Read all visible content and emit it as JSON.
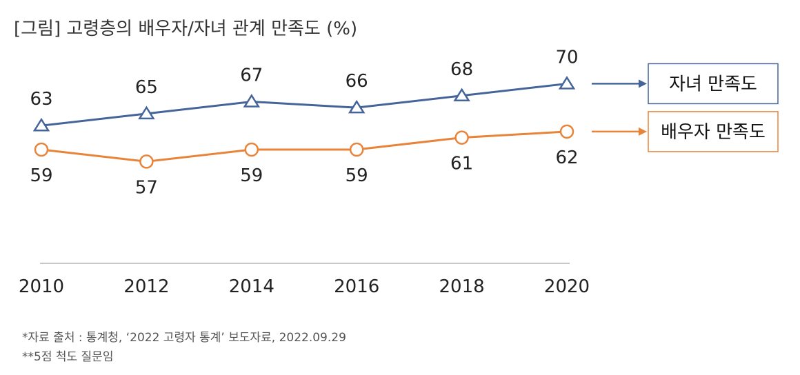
{
  "title": "[그림] 고령층의 배우자/자녀 관계 만족도 (%)",
  "chart_data": {
    "type": "line",
    "title": "[그림] 고령층의 배우자/자녀 관계 만족도 (%)",
    "categories": [
      "2010",
      "2012",
      "2014",
      "2016",
      "2018",
      "2020"
    ],
    "ylim": [
      40,
      75
    ],
    "grid": false,
    "series": [
      {
        "name": "자녀 만족도",
        "values": [
          63,
          65,
          67,
          66,
          68,
          70
        ],
        "color": "#44649a",
        "marker": "triangle",
        "label_position": "above"
      },
      {
        "name": "배우자 만족도",
        "values": [
          59,
          57,
          59,
          59,
          61,
          62
        ],
        "color": "#e8833a",
        "marker": "circle",
        "label_position": "below"
      }
    ],
    "legend_placement": "right"
  },
  "footnotes": {
    "source": "*자료 출처 : 통계청, ‘2022 고령자 통계’ 보도자료, 2022.09.29",
    "scale": "**5점 척도 질문임"
  }
}
